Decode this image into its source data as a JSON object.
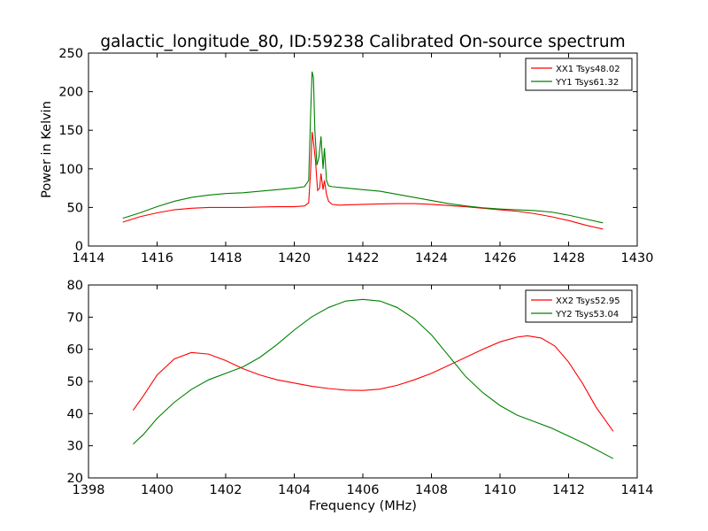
{
  "chart_data": [
    {
      "type": "line",
      "title": "galactic_longitude_80, ID:59238 Calibrated On-source spectrum",
      "xlabel": "",
      "ylabel": "Power in Kelvin",
      "xlim": [
        1414,
        1430
      ],
      "ylim": [
        0,
        250
      ],
      "xticks": [
        1414,
        1416,
        1418,
        1420,
        1422,
        1424,
        1426,
        1428,
        1430
      ],
      "yticks": [
        0,
        50,
        100,
        150,
        200,
        250
      ],
      "grid": false,
      "legend_position": "top-right",
      "series": [
        {
          "name": "XX1 Tsys48.02",
          "color": "#ff0000",
          "x": [
            1415.0,
            1415.5,
            1416.0,
            1416.5,
            1417.0,
            1417.5,
            1418.0,
            1418.5,
            1419.0,
            1419.5,
            1420.0,
            1420.3,
            1420.42,
            1420.48,
            1420.52,
            1420.56,
            1420.62,
            1420.68,
            1420.74,
            1420.78,
            1420.84,
            1420.88,
            1420.94,
            1421.0,
            1421.1,
            1421.3,
            1422.0,
            1422.5,
            1423.0,
            1423.5,
            1424.0,
            1424.5,
            1425.0,
            1425.5,
            1426.0,
            1426.5,
            1427.0,
            1427.5,
            1428.0,
            1428.5,
            1429.0
          ],
          "y": [
            31,
            38,
            43,
            47,
            49,
            50,
            50,
            50,
            50.5,
            51,
            51,
            52,
            56,
            100,
            148,
            135,
            110,
            72,
            75,
            94,
            73,
            85,
            67,
            58,
            54,
            53,
            54,
            54.5,
            55,
            55,
            54,
            52.5,
            51,
            49,
            47,
            45,
            42,
            38,
            33,
            27,
            22
          ]
        },
        {
          "name": "YY1 Tsys61.32",
          "color": "#008000",
          "x": [
            1415.0,
            1415.5,
            1416.0,
            1416.5,
            1417.0,
            1417.5,
            1418.0,
            1418.5,
            1419.0,
            1419.5,
            1420.0,
            1420.3,
            1420.42,
            1420.48,
            1420.52,
            1420.56,
            1420.6,
            1420.66,
            1420.72,
            1420.78,
            1420.84,
            1420.88,
            1420.94,
            1421.0,
            1421.1,
            1421.3,
            1422.0,
            1422.5,
            1423.0,
            1423.5,
            1424.0,
            1424.5,
            1425.0,
            1425.5,
            1426.0,
            1426.5,
            1427.0,
            1427.5,
            1428.0,
            1428.5,
            1429.0
          ],
          "y": [
            36,
            43,
            51,
            58,
            63,
            66,
            68,
            69,
            71,
            73,
            75,
            77,
            85,
            175,
            226,
            218,
            150,
            105,
            115,
            142,
            100,
            127,
            85,
            78,
            77,
            76,
            73,
            71,
            67,
            63,
            59,
            55,
            52,
            49.5,
            48,
            47,
            46,
            44,
            40,
            35,
            30
          ]
        }
      ]
    },
    {
      "type": "line",
      "title": "",
      "xlabel": "Frequency (MHz)",
      "ylabel": "",
      "xlim": [
        1398,
        1414
      ],
      "ylim": [
        20,
        80
      ],
      "xticks": [
        1398,
        1400,
        1402,
        1404,
        1406,
        1408,
        1410,
        1412,
        1414
      ],
      "yticks": [
        20,
        30,
        40,
        50,
        60,
        70,
        80
      ],
      "grid": false,
      "legend_position": "top-right",
      "series": [
        {
          "name": "XX2 Tsys52.95",
          "color": "#ff0000",
          "x": [
            1399.3,
            1399.6,
            1400.0,
            1400.5,
            1401.0,
            1401.5,
            1402.0,
            1402.5,
            1403.0,
            1403.5,
            1404.0,
            1404.5,
            1405.0,
            1405.5,
            1406.0,
            1406.5,
            1407.0,
            1407.5,
            1408.0,
            1408.5,
            1409.0,
            1409.5,
            1410.0,
            1410.5,
            1410.8,
            1411.2,
            1411.6,
            1412.0,
            1412.4,
            1412.8,
            1413.3
          ],
          "y": [
            41,
            45.5,
            52,
            57,
            59,
            58.5,
            56.5,
            54,
            52,
            50.5,
            49.5,
            48.5,
            47.8,
            47.3,
            47.2,
            47.6,
            48.8,
            50.5,
            52.5,
            55,
            57.5,
            60,
            62.3,
            63.8,
            64.2,
            63.5,
            61,
            56,
            49.5,
            42,
            34.5
          ]
        },
        {
          "name": "YY2 Tsys53.04",
          "color": "#008000",
          "x": [
            1399.3,
            1399.6,
            1400.0,
            1400.5,
            1401.0,
            1401.5,
            1402.0,
            1402.5,
            1403.0,
            1403.5,
            1404.0,
            1404.5,
            1405.0,
            1405.5,
            1406.0,
            1406.5,
            1407.0,
            1407.5,
            1408.0,
            1408.5,
            1409.0,
            1409.5,
            1410.0,
            1410.5,
            1411.0,
            1411.5,
            1412.0,
            1412.5,
            1413.3
          ],
          "y": [
            30.5,
            33.5,
            38.5,
            43.5,
            47.5,
            50.5,
            52.5,
            54.5,
            57.5,
            61.5,
            66,
            70,
            73,
            75,
            75.5,
            75,
            73,
            69.5,
            64.5,
            58,
            51.5,
            46.5,
            42.5,
            39.5,
            37.5,
            35.5,
            33,
            30.5,
            26
          ]
        }
      ]
    }
  ]
}
